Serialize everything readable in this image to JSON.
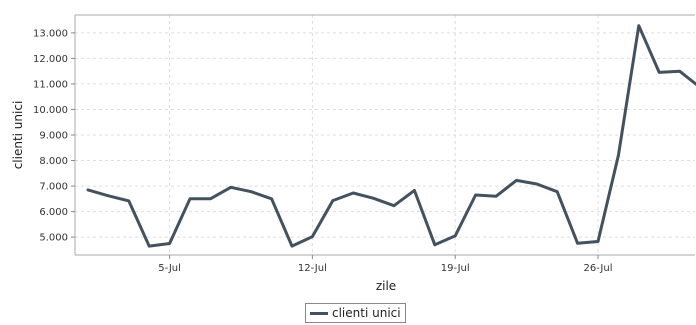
{
  "chart_data": {
    "type": "line",
    "xlabel": "zile",
    "ylabel": "clienti unici",
    "x_tick_labels": [
      "5-Jul",
      "12-Jul",
      "19-Jul",
      "26-Jul"
    ],
    "y_tick_labels": [
      "5.000",
      "6.000",
      "7.000",
      "8.000",
      "9.000",
      "10.000",
      "11.000",
      "12.000",
      "13.000"
    ],
    "x": [
      "2015-07-01",
      "2015-07-02",
      "2015-07-03",
      "2015-07-04",
      "2015-07-05",
      "2015-07-06",
      "2015-07-07",
      "2015-07-08",
      "2015-07-09",
      "2015-07-10",
      "2015-07-11",
      "2015-07-12",
      "2015-07-13",
      "2015-07-14",
      "2015-07-15",
      "2015-07-16",
      "2015-07-17",
      "2015-07-18",
      "2015-07-19",
      "2015-07-20",
      "2015-07-21",
      "2015-07-22",
      "2015-07-23",
      "2015-07-24",
      "2015-07-25",
      "2015-07-26",
      "2015-07-27",
      "2015-07-28",
      "2015-07-29",
      "2015-07-30",
      "2015-07-31"
    ],
    "ylim": [
      4300,
      13700
    ],
    "grid": true,
    "legend_position": "bottom-center",
    "series": [
      {
        "name": "clienti unici",
        "color": "#44515f",
        "values": [
          6850,
          6620,
          6420,
          4650,
          4750,
          6500,
          6500,
          6950,
          6780,
          6500,
          4650,
          5020,
          6430,
          6730,
          6520,
          6230,
          6830,
          4700,
          5050,
          6650,
          6600,
          7220,
          7080,
          6780,
          4760,
          4830,
          8200,
          13280,
          11450,
          11500,
          10870
        ]
      }
    ]
  }
}
